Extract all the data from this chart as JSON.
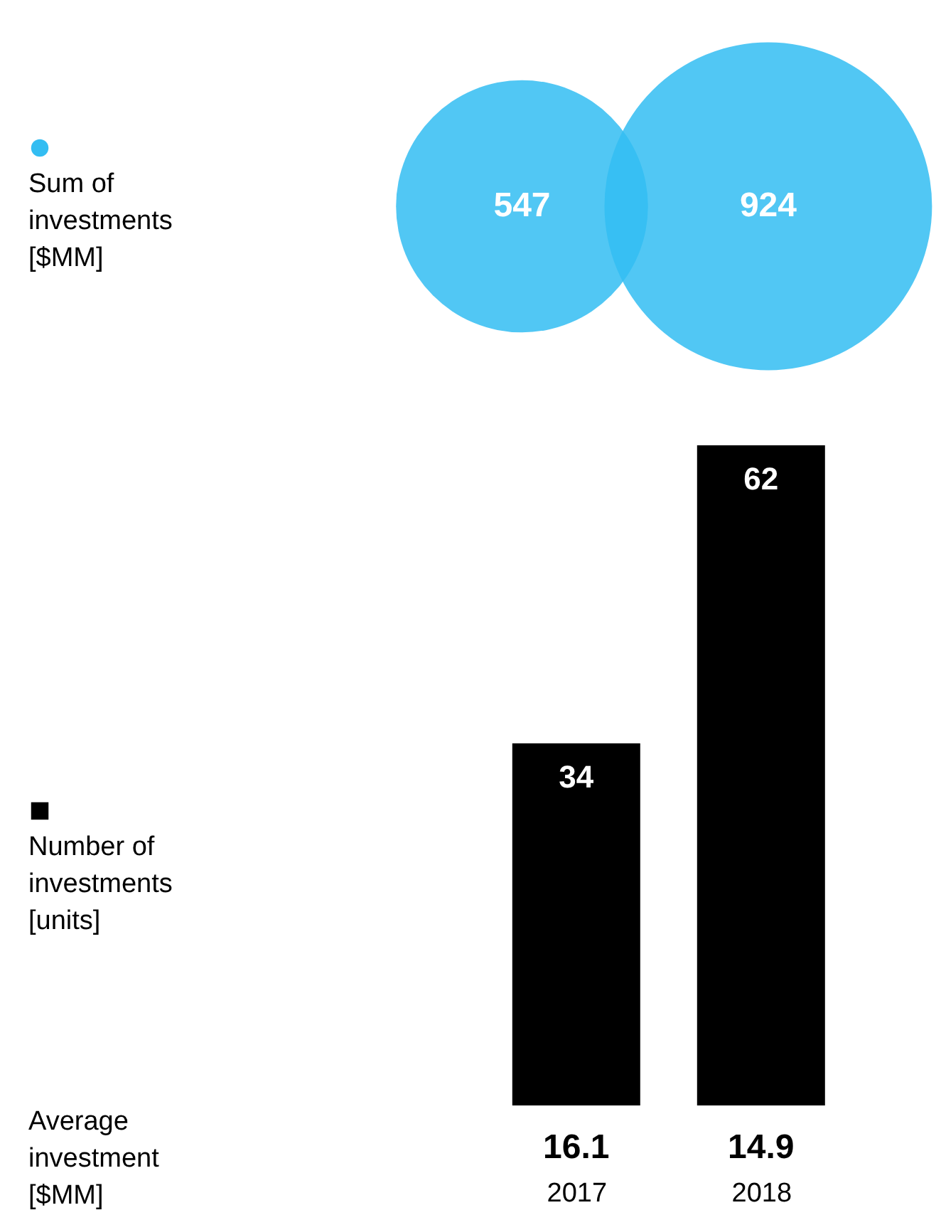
{
  "chart_data": [
    {
      "type": "other",
      "legend": "left",
      "data_labels": true,
      "series": [
        {
          "name": "Sum of investments [$MM]",
          "color": "#33bdf2",
          "values": [
            547,
            924
          ]
        }
      ]
    },
    {
      "type": "bar",
      "categories": [
        "2017",
        "2018"
      ],
      "legend": "left",
      "data_labels": true,
      "series": [
        {
          "name": "Number of investments [units]",
          "color": "#000000",
          "values": [
            34,
            62
          ]
        }
      ],
      "annotations": [
        "Average investment [$MM]",
        "16.1",
        "14.9"
      ]
    }
  ]
}
